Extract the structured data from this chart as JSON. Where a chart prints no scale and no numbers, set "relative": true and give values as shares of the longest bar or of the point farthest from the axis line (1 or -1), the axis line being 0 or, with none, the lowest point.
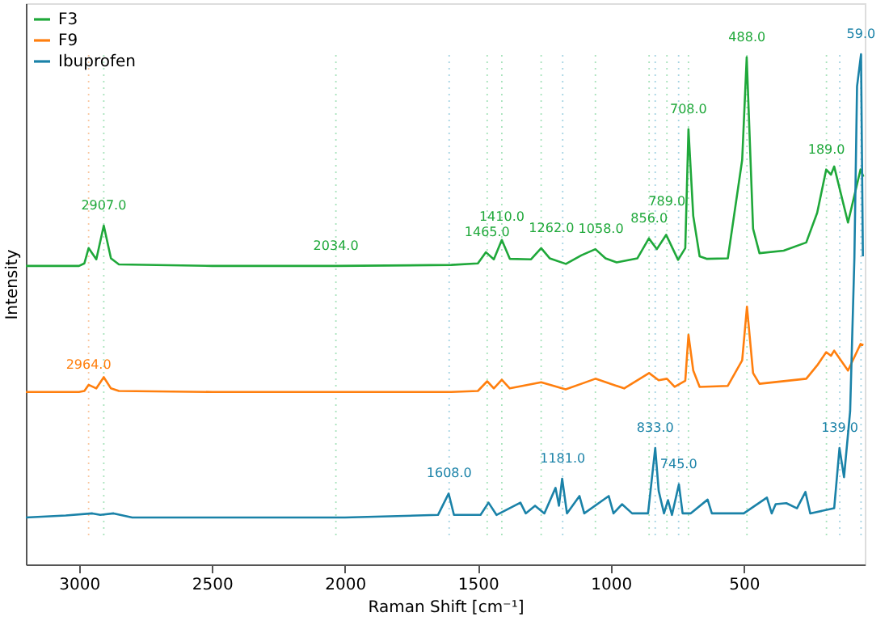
{
  "chart_data": {
    "type": "line",
    "xlabel": "Raman Shift [cm⁻¹]",
    "ylabel": "Intensity",
    "relative": true,
    "xlim": [
      3200,
      45
    ],
    "xticks": [
      3000,
      2500,
      2000,
      1500,
      1000,
      500
    ],
    "grid": false,
    "legend": "top left",
    "marker": "none",
    "line_style": "solid",
    "series": [
      {
        "name": "F3",
        "color": "#1fa83a",
        "x": [
          3200,
          3000,
          2980,
          2964,
          2935,
          2907,
          2880,
          2850,
          2500,
          2034,
          1600,
          1500,
          1470,
          1440,
          1410,
          1380,
          1300,
          1262,
          1230,
          1169,
          1110,
          1058,
          1020,
          978,
          900,
          857,
          827,
          792,
          747,
          720,
          708,
          690,
          666,
          640,
          560,
          506,
          489,
          465,
          441,
          350,
          265,
          224,
          190,
          172,
          160,
          108,
          61,
          50
        ],
        "values": [
          0.585,
          0.585,
          0.59,
          0.62,
          0.598,
          0.664,
          0.6,
          0.588,
          0.585,
          0.585,
          0.587,
          0.59,
          0.612,
          0.598,
          0.636,
          0.599,
          0.598,
          0.62,
          0.6,
          0.589,
          0.606,
          0.618,
          0.6,
          0.592,
          0.6,
          0.639,
          0.618,
          0.646,
          0.597,
          0.62,
          0.853,
          0.683,
          0.604,
          0.599,
          0.6,
          0.793,
          0.994,
          0.658,
          0.61,
          0.615,
          0.631,
          0.689,
          0.774,
          0.764,
          0.78,
          0.67,
          0.774,
          0.76
        ]
      },
      {
        "name": "F9",
        "color": "#ff7f0e",
        "x": [
          3200,
          3000,
          2980,
          2964,
          2935,
          2907,
          2880,
          2850,
          2500,
          1600,
          1500,
          1465,
          1440,
          1410,
          1380,
          1262,
          1170,
          1100,
          1058,
          950,
          856,
          820,
          789,
          760,
          720,
          708,
          690,
          666,
          560,
          506,
          488,
          465,
          441,
          265,
          224,
          190,
          172,
          160,
          108,
          61,
          50
        ],
        "values": [
          0.338,
          0.338,
          0.34,
          0.352,
          0.345,
          0.367,
          0.345,
          0.34,
          0.338,
          0.338,
          0.34,
          0.359,
          0.345,
          0.362,
          0.345,
          0.357,
          0.343,
          0.356,
          0.364,
          0.345,
          0.375,
          0.361,
          0.364,
          0.348,
          0.36,
          0.45,
          0.38,
          0.348,
          0.35,
          0.4,
          0.505,
          0.375,
          0.354,
          0.364,
          0.39,
          0.416,
          0.409,
          0.419,
          0.38,
          0.432,
          0.43
        ]
      },
      {
        "name": "Ibuprofen",
        "color": "#1a82a8",
        "x": [
          3200,
          3050,
          2950,
          2920,
          2870,
          2800,
          2500,
          2000,
          1650,
          1610,
          1590,
          1490,
          1460,
          1430,
          1340,
          1320,
          1285,
          1250,
          1208,
          1195,
          1183,
          1165,
          1118,
          1100,
          1008,
          990,
          958,
          920,
          860,
          833,
          820,
          800,
          785,
          770,
          744,
          730,
          700,
          636,
          620,
          500,
          413,
          395,
          380,
          340,
          300,
          268,
          250,
          160,
          140,
          123,
          100,
          84,
          74,
          59,
          52
        ],
        "values": [
          0.092,
          0.096,
          0.1,
          0.097,
          0.1,
          0.092,
          0.092,
          0.092,
          0.097,
          0.139,
          0.097,
          0.097,
          0.121,
          0.097,
          0.121,
          0.1,
          0.115,
          0.1,
          0.15,
          0.115,
          0.168,
          0.1,
          0.134,
          0.1,
          0.134,
          0.1,
          0.118,
          0.1,
          0.1,
          0.228,
          0.144,
          0.1,
          0.126,
          0.097,
          0.157,
          0.1,
          0.1,
          0.127,
          0.1,
          0.1,
          0.131,
          0.1,
          0.118,
          0.12,
          0.11,
          0.142,
          0.1,
          0.11,
          0.228,
          0.171,
          0.3,
          0.6,
          0.937,
          1.0,
          0.604
        ]
      }
    ],
    "ref_lines": [
      {
        "axis": "x",
        "value": 2964,
        "color": "#f9c9a3",
        "line_style": "dotted"
      },
      {
        "axis": "x",
        "value": 2907,
        "color": "#a8e3bc",
        "line_style": "dotted"
      },
      {
        "axis": "x",
        "value": 2034,
        "color": "#a8e3bc",
        "line_style": "dotted"
      },
      {
        "axis": "x",
        "value": 1608,
        "color": "#a6d4e3",
        "line_style": "dotted"
      },
      {
        "axis": "x",
        "value": 1465,
        "color": "#a8e3bc",
        "line_style": "dotted"
      },
      {
        "axis": "x",
        "value": 1410,
        "color": "#a8e3bc",
        "line_style": "dotted"
      },
      {
        "axis": "x",
        "value": 1262,
        "color": "#a8e3bc",
        "line_style": "dotted"
      },
      {
        "axis": "x",
        "value": 1181,
        "color": "#a6d4e3",
        "line_style": "dotted"
      },
      {
        "axis": "x",
        "value": 1058,
        "color": "#a8e3bc",
        "line_style": "dotted"
      },
      {
        "axis": "x",
        "value": 856,
        "color": "#a8e3bc",
        "line_style": "dotted"
      },
      {
        "axis": "x",
        "value": 833,
        "color": "#a6d4e3",
        "line_style": "dotted"
      },
      {
        "axis": "x",
        "value": 789,
        "color": "#a8e3bc",
        "line_style": "dotted"
      },
      {
        "axis": "x",
        "value": 745,
        "color": "#a6d4e3",
        "line_style": "dotted"
      },
      {
        "axis": "x",
        "value": 708,
        "color": "#a8e3bc",
        "line_style": "dotted"
      },
      {
        "axis": "x",
        "value": 488,
        "color": "#a8e3bc",
        "line_style": "dotted"
      },
      {
        "axis": "x",
        "value": 189,
        "color": "#a8e3bc",
        "line_style": "dotted"
      },
      {
        "axis": "x",
        "value": 139,
        "color": "#a6d4e3",
        "line_style": "dotted"
      },
      {
        "axis": "x",
        "value": 59,
        "color": "#a6d4e3",
        "line_style": "dotted"
      }
    ],
    "annotations": [
      {
        "text": "2964.0",
        "x": 2964,
        "y": 0.352
      },
      {
        "text": "2907.0",
        "x": 2907,
        "y": 0.664
      },
      {
        "text": "2034.0",
        "x": 2034,
        "y": 0.585
      },
      {
        "text": "1608.0",
        "x": 1608,
        "y": 0.139
      },
      {
        "text": "1465.0",
        "x": 1465,
        "y": 0.612
      },
      {
        "text": "1410.0",
        "x": 1410,
        "y": 0.636
      },
      {
        "text": "1262.0",
        "x": 1262,
        "y": 0.62
      },
      {
        "text": "1181.0",
        "x": 1181,
        "y": 0.168
      },
      {
        "text": "1058.0",
        "x": 1058,
        "y": 0.618
      },
      {
        "text": "856.0",
        "x": 856,
        "y": 0.639
      },
      {
        "text": "833.0",
        "x": 833,
        "y": 0.228
      },
      {
        "text": "789.0",
        "x": 789,
        "y": 0.646
      },
      {
        "text": "745.0",
        "x": 745,
        "y": 0.157
      },
      {
        "text": "708.0",
        "x": 708,
        "y": 0.853
      },
      {
        "text": "488.0",
        "x": 488,
        "y": 0.994
      },
      {
        "text": "189.0",
        "x": 189,
        "y": 0.774
      },
      {
        "text": "139.0",
        "x": 139,
        "y": 0.228
      },
      {
        "text": "59.0",
        "x": 59,
        "y": 1.0
      }
    ]
  }
}
